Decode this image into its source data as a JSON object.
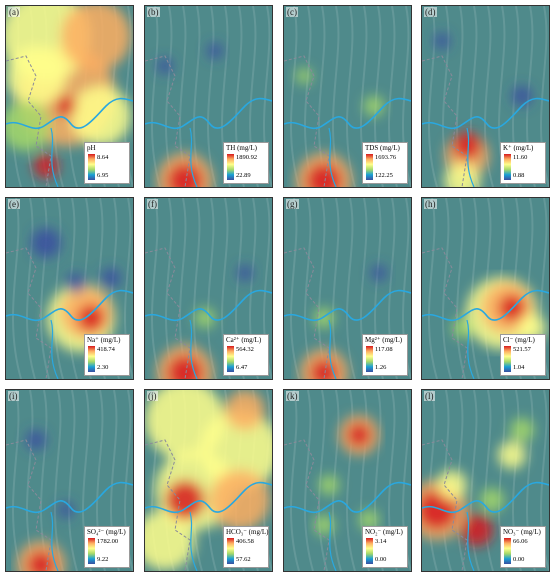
{
  "panels": [
    {
      "tag": "(a)",
      "param": "pH",
      "unit": "",
      "max": "8.64",
      "min": "6.95"
    },
    {
      "tag": "(b)",
      "param": "TH",
      "unit": "(mg/L)",
      "max": "1890.92",
      "min": "22.89"
    },
    {
      "tag": "(c)",
      "param": "TDS",
      "unit": "(mg/L)",
      "max": "1693.76",
      "min": "122.25"
    },
    {
      "tag": "(d)",
      "param": "K⁺",
      "unit": "(mg/L)",
      "max": "11.60",
      "min": "0.88"
    },
    {
      "tag": "(e)",
      "param": "Na⁺",
      "unit": "(mg/L)",
      "max": "418.74",
      "min": "2.30"
    },
    {
      "tag": "(f)",
      "param": "Ca²⁺",
      "unit": "(mg/L)",
      "max": "564.32",
      "min": "6.47"
    },
    {
      "tag": "(g)",
      "param": "Mg²⁺",
      "unit": "(mg/L)",
      "max": "117.08",
      "min": "1.26"
    },
    {
      "tag": "(h)",
      "param": "Cl⁻",
      "unit": "(mg/L)",
      "max": "521.57",
      "min": "1.04"
    },
    {
      "tag": "(i)",
      "param": "SO₄²⁻",
      "unit": "(mg/L)",
      "max": "1782.00",
      "min": "9.22"
    },
    {
      "tag": "(j)",
      "param": "HCO₃⁻",
      "unit": "(mg/L)",
      "max": "406.58",
      "min": "57.62"
    },
    {
      "tag": "(k)",
      "param": "NO₂⁻",
      "unit": "(mg/L)",
      "max": "3.14",
      "min": "0.00"
    },
    {
      "tag": "(l)",
      "param": "NO₃⁻",
      "unit": "(mg/L)",
      "max": "66.06",
      "min": "0.00"
    }
  ],
  "colors": {
    "high": "#d7191c",
    "mid_high": "#fdae61",
    "mid": "#ffff8c",
    "mid_low": "#a6d96a",
    "low_teal": "#1a9fd5",
    "low": "#3a4fa0",
    "base_terrain": "#4f8a8b",
    "river": "#29a8e0",
    "boundary": "#8a8a9a"
  },
  "legend_style": "colour ramp from red (max) to blue (min)"
}
